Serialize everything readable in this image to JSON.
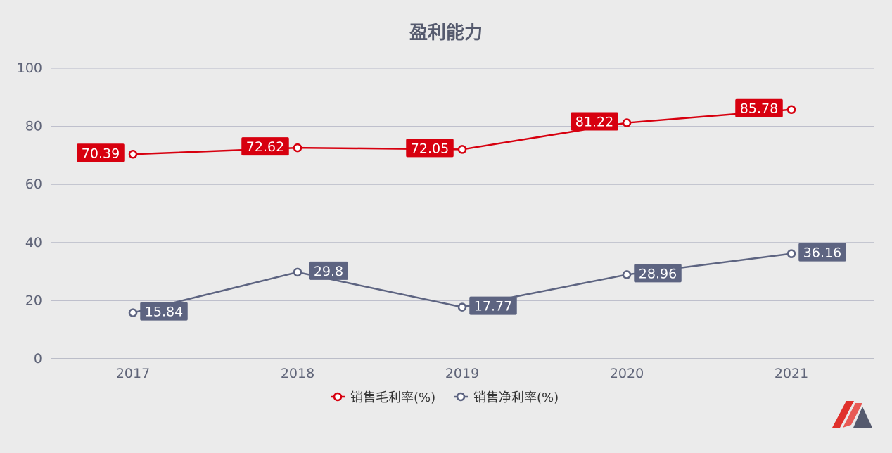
{
  "chart_data": {
    "type": "line",
    "title": "盈利能力",
    "categories": [
      "2017",
      "2018",
      "2019",
      "2020",
      "2021"
    ],
    "series": [
      {
        "name": "销售毛利率(%)",
        "color": "#d7000f",
        "values": [
          70.39,
          72.62,
          72.05,
          81.22,
          85.78
        ]
      },
      {
        "name": "销售净利率(%)",
        "color": "#5d6481",
        "values": [
          15.84,
          29.8,
          17.77,
          28.96,
          36.16
        ]
      }
    ],
    "ylim": [
      0,
      100
    ],
    "yticks": [
      0,
      20,
      40,
      60,
      80,
      100
    ],
    "grid": true,
    "legend": "bottom-center",
    "logo": "brand-m-logo"
  }
}
